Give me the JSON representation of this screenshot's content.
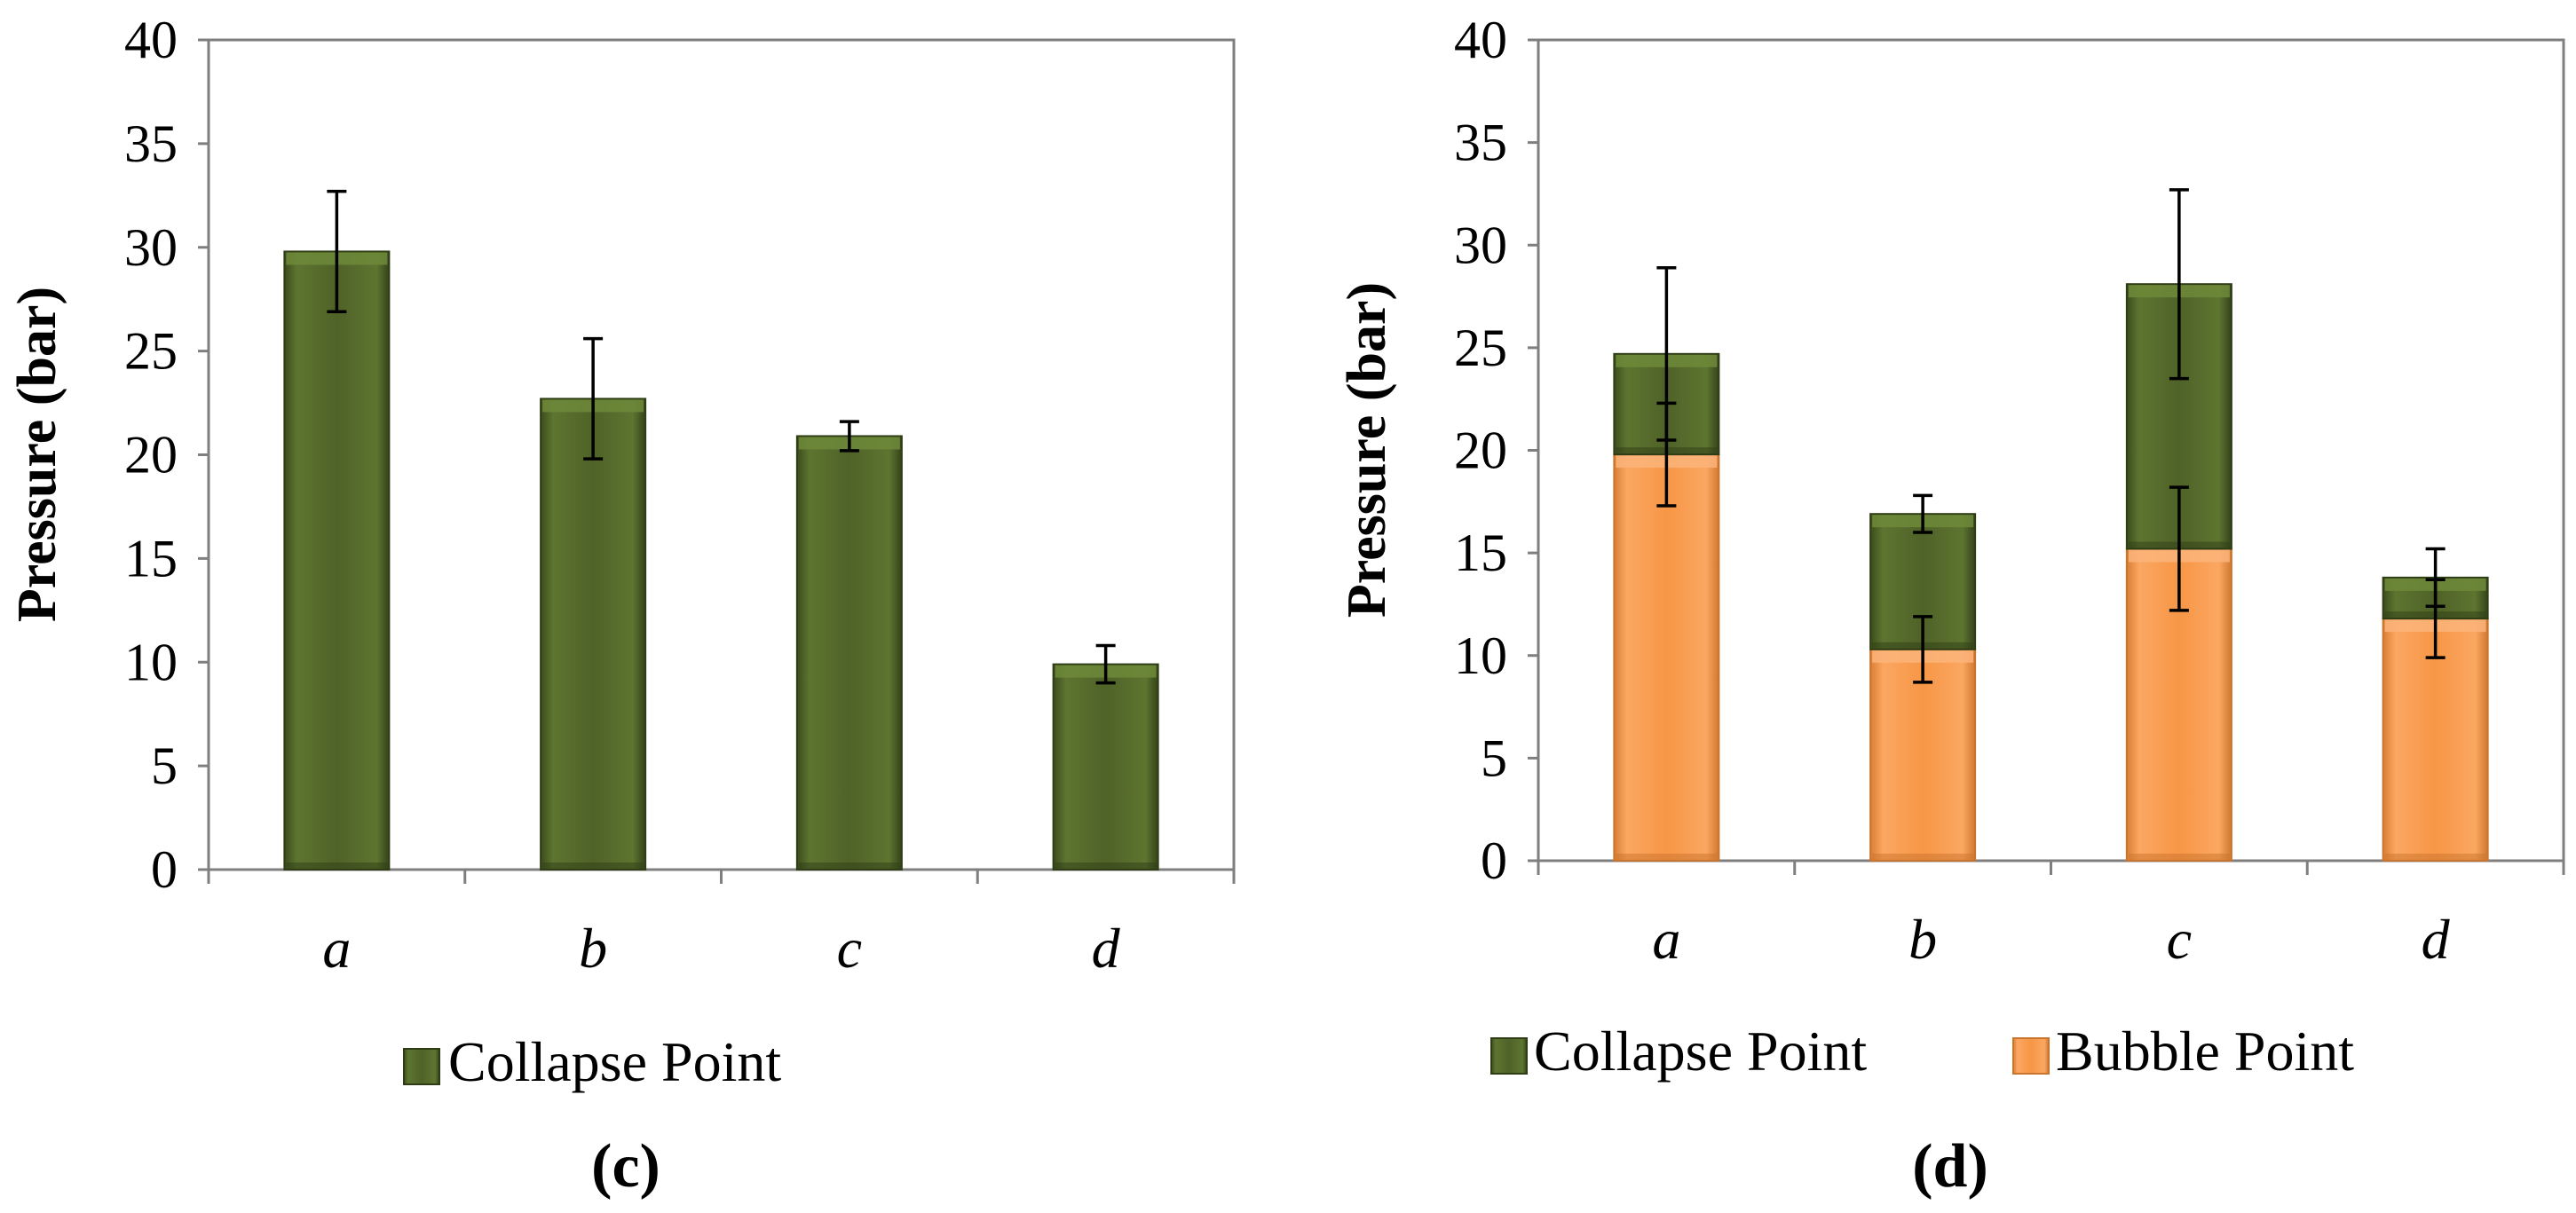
{
  "colors": {
    "collapse": "#4f6228",
    "collapse_light": "#6f8a39",
    "collapse_dark": "#2f3d16",
    "bubble": "#f79646",
    "bubble_light": "#fbb47a",
    "bubble_dark": "#c9742d",
    "axis": "#7f7f7f",
    "text": "#000000"
  },
  "chart_data": [
    {
      "type": "bar",
      "panel_label": "(c)",
      "categories": [
        "a",
        "b",
        "c",
        "d"
      ],
      "ylabel": "Pressure (bar)",
      "ylim": [
        0,
        40
      ],
      "yticks": [
        "0",
        "5",
        "10",
        "15",
        "20",
        "25",
        "30",
        "35",
        "40"
      ],
      "series": [
        {
          "name": "Collapse Point",
          "values": [
            29.8,
            22.7,
            20.9,
            9.9
          ],
          "errors": [
            2.9,
            2.9,
            0.7,
            0.9
          ]
        }
      ],
      "legend": [
        "Collapse Point"
      ],
      "legend_position": "bottom"
    },
    {
      "type": "bar",
      "stacked": true,
      "panel_label": "(d)",
      "categories": [
        "a",
        "b",
        "c",
        "d"
      ],
      "ylabel": "Pressure (bar)",
      "ylim": [
        0,
        40
      ],
      "yticks": [
        "0",
        "5",
        "10",
        "15",
        "20",
        "25",
        "30",
        "35",
        "40"
      ],
      "series": [
        {
          "name": "Bubble Point",
          "values": [
            19.8,
            10.3,
            15.2,
            11.8
          ],
          "errors": [
            2.5,
            1.6,
            3.0,
            1.9
          ]
        },
        {
          "name": "Collapse Point",
          "values": [
            4.9,
            6.6,
            12.9,
            2.0
          ],
          "errors": [
            4.2,
            0.9,
            4.6,
            1.4
          ]
        }
      ],
      "legend": [
        "Collapse Point",
        "Bubble Point"
      ],
      "legend_position": "bottom"
    }
  ]
}
